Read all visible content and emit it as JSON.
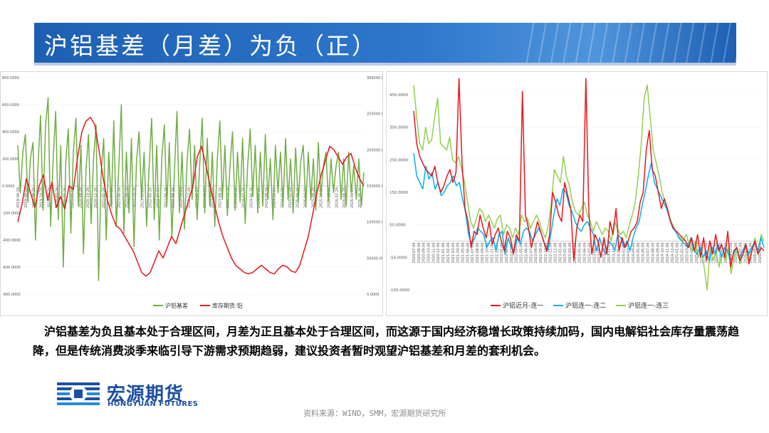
{
  "title": "沪铝基差（月差）为负（正）",
  "body_text": "沪铝基差为负且基本处于合理区间，月差为正且基本处于合理区间，而这源于国内经济稳增长政策持续加码，国内电解铝社会库存量震荡趋降，但是传统消费淡季来临引导下游需求预期趋弱，建议投资者暂时观望沪铝基差和月差的套利机会。",
  "source": "资料来源：WIND，SMM，宏源期货研究所",
  "logo": {
    "name": "宏源期货",
    "english": "HONGYUAN FUTURES"
  },
  "colors": {
    "brand_blue": "#1d5fb3",
    "green": "#70ad47",
    "red": "#e8161b",
    "cyan": "#00b0f0",
    "lime": "#92d050"
  },
  "chart_data": [
    {
      "type": "line",
      "left_ticks": [
        "800.0000",
        "600.0000",
        "400.0000",
        "200.0000",
        "0.0000",
        "-200.0000",
        "-400.0000",
        "-600.0000",
        "-800.0000"
      ],
      "right_ticks": [
        "300000.0000",
        "250000.0000",
        "200000.0000",
        "150000.0000",
        "100000.0000",
        "50000.0000",
        "0.0000"
      ],
      "ylim_left": [
        -800,
        800
      ],
      "ylim_right": [
        0,
        300000
      ],
      "x_ticks": [
        "2019-04-26",
        "2019-06-26",
        "2019-08-26",
        "2019-10-26",
        "2019-12-26",
        "2020-02-26",
        "2020-04-26",
        "2020-06-26",
        "2020-08-26",
        "2020-10-26",
        "2020-12-26",
        "2021-02-26",
        "2021-04-26",
        "2021-06-26",
        "2021-08-26",
        "2021-10-26",
        "2021-12-26",
        "2022-02-26",
        "2022-04-26",
        "2022-06-26",
        "2022-08-26",
        "2022-10-26",
        "2022-12-26",
        "2023-02-26",
        "2023-04-26",
        "2023-06-26",
        "2023-08-26",
        "2023-10-26",
        "2023-12-26",
        "2024-02-26",
        "2024-04-26",
        "2024-06-26",
        "2024-08-26",
        "2024-10-26",
        "2024-12-26",
        "2025-02-26",
        "2025-04-26",
        "2025-06-26",
        "2025-08-26",
        "2025-10-26",
        "2025-12-26",
        "2026-02-26",
        "2026-04-26",
        "2026-06-26",
        "2026-08-26"
      ],
      "series": [
        {
          "name": "沪铝基差",
          "axis": "left",
          "color": "#70ad47",
          "values": [
            300,
            -50,
            250,
            380,
            -120,
            200,
            320,
            -400,
            150,
            520,
            -180,
            450,
            650,
            -300,
            200,
            550,
            -250,
            300,
            -600,
            180,
            420,
            -350,
            250,
            500,
            -150,
            300,
            -500,
            120,
            380,
            -280,
            200,
            450,
            -700,
            100,
            350,
            -400,
            250,
            -150,
            480,
            -300,
            150,
            600,
            -350,
            250,
            -200,
            350,
            -450,
            180,
            400,
            -100,
            250,
            -300,
            150,
            500,
            -250,
            300,
            -400,
            200,
            450,
            -150,
            320,
            -380,
            100,
            550,
            -200,
            250,
            -320,
            180,
            420,
            -100,
            300,
            -250,
            150,
            500,
            -200,
            350,
            -150,
            250,
            -300,
            200,
            480,
            -100,
            300,
            -220,
            150,
            400,
            -180,
            250,
            -120,
            350,
            -280,
            150,
            420,
            -80,
            300,
            -200,
            250,
            -150,
            380,
            -100,
            200,
            -250,
            300,
            -50,
            250,
            -150,
            350,
            -100,
            200,
            -200,
            280,
            -120,
            180,
            300,
            -150,
            250,
            -100,
            200,
            -180,
            320,
            -80,
            150,
            250,
            -120,
            200,
            -50,
            150,
            250,
            -100,
            200,
            -150,
            250,
            -50,
            150,
            -100,
            200,
            -150,
            100
          ]
        },
        {
          "name": "库存期货:铝",
          "axis": "right",
          "color": "#e8161b",
          "values": [
            100000,
            125000,
            160000,
            140000,
            120000,
            150000,
            165000,
            130000,
            155000,
            120000,
            135000,
            118000,
            150000,
            145000,
            190000,
            225000,
            240000,
            245000,
            235000,
            200000,
            160000,
            130000,
            110000,
            95000,
            90000,
            80000,
            70000,
            60000,
            45000,
            30000,
            25000,
            30000,
            45000,
            60000,
            50000,
            65000,
            80000,
            70000,
            90000,
            110000,
            130000,
            150000,
            190000,
            205000,
            180000,
            150000,
            125000,
            100000,
            80000,
            65000,
            50000,
            40000,
            35000,
            30000,
            28000,
            30000,
            35000,
            40000,
            35000,
            30000,
            28000,
            35000,
            40000,
            38000,
            32000,
            30000,
            40000,
            60000,
            80000,
            110000,
            140000,
            165000,
            185000,
            205000,
            200000,
            190000,
            180000,
            190000,
            195000,
            175000,
            160000,
            150000
          ]
        }
      ]
    },
    {
      "type": "line",
      "y_ticks": [
        "450.0000",
        "350.0000",
        "250.0000",
        "150.0000",
        "50.0000",
        "-50.0000",
        "-150.0000"
      ],
      "ylim": [
        -150,
        500
      ],
      "x_ticks": [
        "2020-07-06",
        "2020-08-06",
        "2020-09-06",
        "2020-10-06",
        "2020-11-06",
        "2020-12-06",
        "2021-01-06",
        "2021-02-06",
        "2021-03-06",
        "2021-04-06",
        "2021-05-06",
        "2021-06-06",
        "2021-07-06",
        "2021-08-06",
        "2021-09-06",
        "2021-10-06",
        "2021-11-06",
        "2021-12-06",
        "2022-01-06",
        "2022-02-06",
        "2022-03-06",
        "2022-04-06",
        "2022-05-06",
        "2022-06-06",
        "2022-07-06",
        "2022-08-06",
        "2022-09-06",
        "2022-10-06",
        "2022-11-06",
        "2022-12-06",
        "2023-01-06",
        "2023-02-06",
        "2023-03-06",
        "2023-04-06",
        "2023-05-06",
        "2023-06-06",
        "2023-07-06",
        "2023-08-06",
        "2023-09-06",
        "2023-10-06",
        "2023-11-06",
        "2023-12-06",
        "2024-01-06",
        "2024-02-06",
        "2024-03-06",
        "2024-04-06",
        "2024-05-06",
        "2024-06-06",
        "2024-07-06",
        "2024-08-06",
        "2024-09-06",
        "2024-10-06",
        "2024-11-06",
        "2024-12-06",
        "2025-01-06",
        "2025-02-06",
        "2025-03-06",
        "2025-04-06",
        "2025-05-06",
        "2025-06-06",
        "2025-07-06",
        "2025-08-06",
        "2025-09-06",
        "2025-10-06",
        "2025-11-06",
        "2025-12-06",
        "2026-01-06",
        "2026-02-06",
        "2026-03-06",
        "2026-04-06",
        "2026-05-06",
        "2026-06-06"
      ],
      "series": [
        {
          "name": "沪铝近月-连一",
          "color": "#e8161b",
          "values": [
            400,
            300,
            260,
            240,
            220,
            210,
            200,
            230,
            180,
            150,
            170,
            200,
            220,
            180,
            210,
            500,
            240,
            100,
            60,
            -20,
            30,
            20,
            80,
            40,
            10,
            60,
            -10,
            20,
            40,
            0,
            -30,
            30,
            10,
            -40,
            20,
            0,
            460,
            80,
            40,
            -20,
            20,
            60,
            30,
            0,
            -30,
            20,
            150,
            120,
            80,
            60,
            180,
            140,
            100,
            -60,
            40,
            80,
            60,
            500,
            90,
            -40,
            20,
            0,
            -50,
            10,
            -40,
            60,
            20,
            100,
            -30,
            10,
            -20,
            0,
            30,
            40,
            60,
            120,
            150,
            280,
            340,
            220,
            200,
            150,
            100,
            130,
            100,
            60,
            40,
            30,
            20,
            10,
            0,
            -20,
            10,
            -30,
            20,
            -50,
            10,
            -60,
            0,
            -40,
            20,
            -30,
            -10,
            -50,
            30,
            -80,
            -30,
            -20,
            -60,
            -40,
            -10,
            -70,
            -30,
            0,
            -40,
            -20,
            -30
          ]
        },
        {
          "name": "沪铝连一-连二",
          "color": "#00b0f0",
          "values": [
            270,
            200,
            180,
            160,
            230,
            190,
            210,
            160,
            180,
            140,
            150,
            170,
            180,
            200,
            170,
            180,
            130,
            90,
            20,
            -10,
            10,
            40,
            30,
            20,
            -20,
            0,
            10,
            -30,
            20,
            30,
            -40,
            10,
            -20,
            -30,
            10,
            -10,
            30,
            40,
            30,
            0,
            20,
            40,
            20,
            -10,
            -30,
            20,
            80,
            130,
            110,
            160,
            150,
            110,
            90,
            60,
            40,
            30,
            50,
            60,
            40,
            20,
            -30,
            10,
            -20,
            -40,
            0,
            -10,
            -30,
            20,
            10,
            -20,
            0,
            -30,
            10,
            40,
            60,
            110,
            150,
            200,
            240,
            180,
            160,
            140,
            120,
            100,
            70,
            40,
            30,
            10,
            0,
            -10,
            -20,
            10,
            -30,
            -40,
            -20,
            -50,
            -30,
            -60,
            -20,
            -40,
            -10,
            -50,
            -20,
            -30,
            -60,
            -40,
            -20,
            -50,
            -30,
            -10,
            -40,
            -20,
            0,
            -30,
            10,
            -20
          ]
        },
        {
          "name": "沪铝连一-连三",
          "color": "#92d050",
          "values": [
            480,
            380,
            300,
            280,
            350,
            300,
            310,
            380,
            440,
            300,
            290,
            280,
            320,
            250,
            240,
            260,
            220,
            180,
            120,
            60,
            40,
            70,
            100,
            90,
            60,
            80,
            60,
            40,
            70,
            80,
            20,
            50,
            40,
            10,
            40,
            20,
            80,
            60,
            70,
            40,
            60,
            80,
            60,
            30,
            10,
            50,
            120,
            220,
            200,
            180,
            260,
            200,
            170,
            120,
            90,
            80,
            100,
            120,
            80,
            60,
            30,
            60,
            40,
            20,
            40,
            30,
            0,
            60,
            40,
            20,
            30,
            10,
            50,
            80,
            120,
            200,
            300,
            440,
            480,
            380,
            280,
            240,
            200,
            150,
            120,
            90,
            60,
            40,
            20,
            10,
            0,
            20,
            -10,
            -30,
            0,
            -50,
            -20,
            -80,
            -150,
            -20,
            -60,
            -30,
            -80,
            -40,
            -60,
            -20,
            -100,
            -50,
            -30,
            -70,
            -40,
            -10,
            -60,
            -30,
            10,
            -40,
            20,
            0
          ]
        }
      ]
    }
  ]
}
